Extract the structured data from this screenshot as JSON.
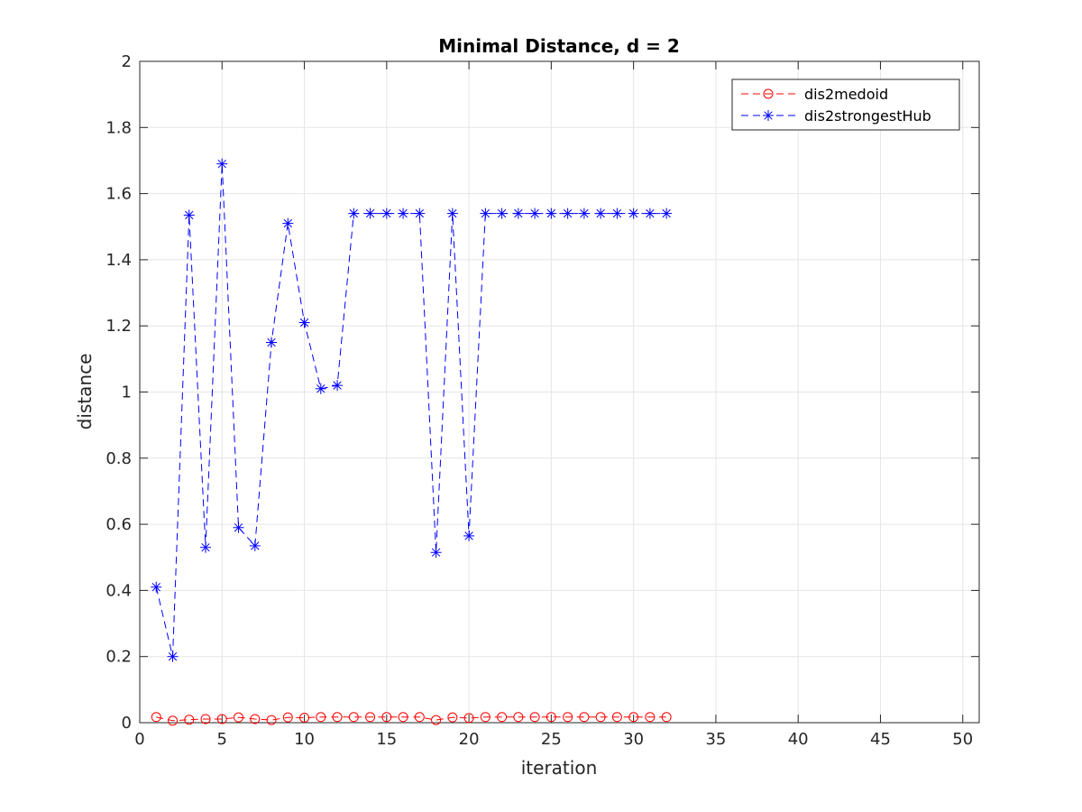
{
  "chart_data": {
    "type": "line",
    "title": "Minimal Distance, d = 2",
    "xlabel": "iteration",
    "ylabel": "distance",
    "xlim": [
      0,
      51
    ],
    "ylim": [
      0,
      2
    ],
    "xticks": [
      0,
      5,
      10,
      15,
      20,
      25,
      30,
      35,
      40,
      45,
      50
    ],
    "yticks": [
      0,
      0.2,
      0.4,
      0.6,
      0.8,
      1,
      1.2,
      1.4,
      1.6,
      1.8,
      2
    ],
    "grid": true,
    "legend_position": "top-right",
    "x": [
      1,
      2,
      3,
      4,
      5,
      6,
      7,
      8,
      9,
      10,
      11,
      12,
      13,
      14,
      15,
      16,
      17,
      18,
      19,
      20,
      21,
      22,
      23,
      24,
      25,
      26,
      27,
      28,
      29,
      30,
      31,
      32
    ],
    "series": [
      {
        "name": "dis2medoid",
        "color": "#ff0000",
        "marker": "circle",
        "line_style": "dashed",
        "values": [
          0.017,
          0.006,
          0.009,
          0.011,
          0.011,
          0.016,
          0.011,
          0.008,
          0.016,
          0.015,
          0.017,
          0.017,
          0.017,
          0.017,
          0.017,
          0.017,
          0.017,
          0.008,
          0.016,
          0.014,
          0.017,
          0.017,
          0.017,
          0.017,
          0.017,
          0.017,
          0.017,
          0.017,
          0.017,
          0.017,
          0.017,
          0.017
        ]
      },
      {
        "name": "dis2strongestHub",
        "color": "#0000ff",
        "marker": "asterisk",
        "line_style": "dashed",
        "values": [
          0.41,
          0.2,
          1.535,
          0.53,
          1.69,
          0.59,
          0.535,
          1.15,
          1.51,
          1.21,
          1.01,
          1.02,
          1.54,
          1.54,
          1.54,
          1.54,
          1.54,
          0.515,
          1.54,
          0.565,
          1.54,
          1.54,
          1.54,
          1.54,
          1.54,
          1.54,
          1.54,
          1.54,
          1.54,
          1.54,
          1.54,
          1.54
        ]
      }
    ]
  }
}
